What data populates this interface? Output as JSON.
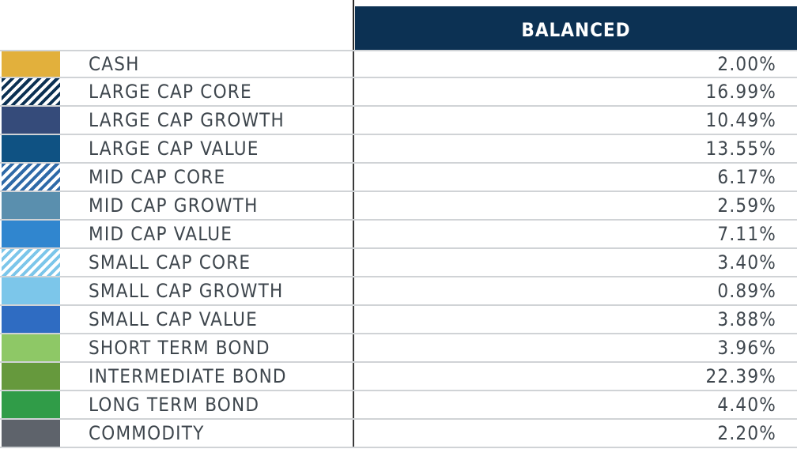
{
  "chart_data": {
    "type": "table",
    "column_header": "BALANCED",
    "rows": [
      {
        "label": "CASH",
        "value": "2.00%",
        "color": "#e2b03c",
        "pattern": "solid"
      },
      {
        "label": "LARGE CAP CORE",
        "value": "16.99%",
        "color": "#0c3153",
        "pattern": "hatch"
      },
      {
        "label": "LARGE CAP GROWTH",
        "value": "10.49%",
        "color": "#354b7a",
        "pattern": "solid"
      },
      {
        "label": "LARGE CAP VALUE",
        "value": "13.55%",
        "color": "#0f5283",
        "pattern": "solid"
      },
      {
        "label": "MID CAP CORE",
        "value": "6.17%",
        "color": "#2f6aa8",
        "pattern": "hatch"
      },
      {
        "label": "MID CAP GROWTH",
        "value": "2.59%",
        "color": "#5a8fae",
        "pattern": "solid"
      },
      {
        "label": "MID CAP VALUE",
        "value": "7.11%",
        "color": "#3086cf",
        "pattern": "solid"
      },
      {
        "label": "SMALL CAP CORE",
        "value": "3.40%",
        "color": "#7cc6ea",
        "pattern": "hatch"
      },
      {
        "label": "SMALL CAP GROWTH",
        "value": "0.89%",
        "color": "#7cc6ea",
        "pattern": "solid"
      },
      {
        "label": "SMALL CAP VALUE",
        "value": "3.88%",
        "color": "#2f6cc2",
        "pattern": "solid"
      },
      {
        "label": "SHORT TERM BOND",
        "value": "3.96%",
        "color": "#8ec866",
        "pattern": "solid"
      },
      {
        "label": "INTERMEDIATE BOND",
        "value": "22.39%",
        "color": "#66993d",
        "pattern": "solid"
      },
      {
        "label": "LONG TERM BOND",
        "value": "4.40%",
        "color": "#309c48",
        "pattern": "solid"
      },
      {
        "label": "COMMODITY",
        "value": "2.20%",
        "color": "#5e636b",
        "pattern": "solid"
      }
    ]
  }
}
